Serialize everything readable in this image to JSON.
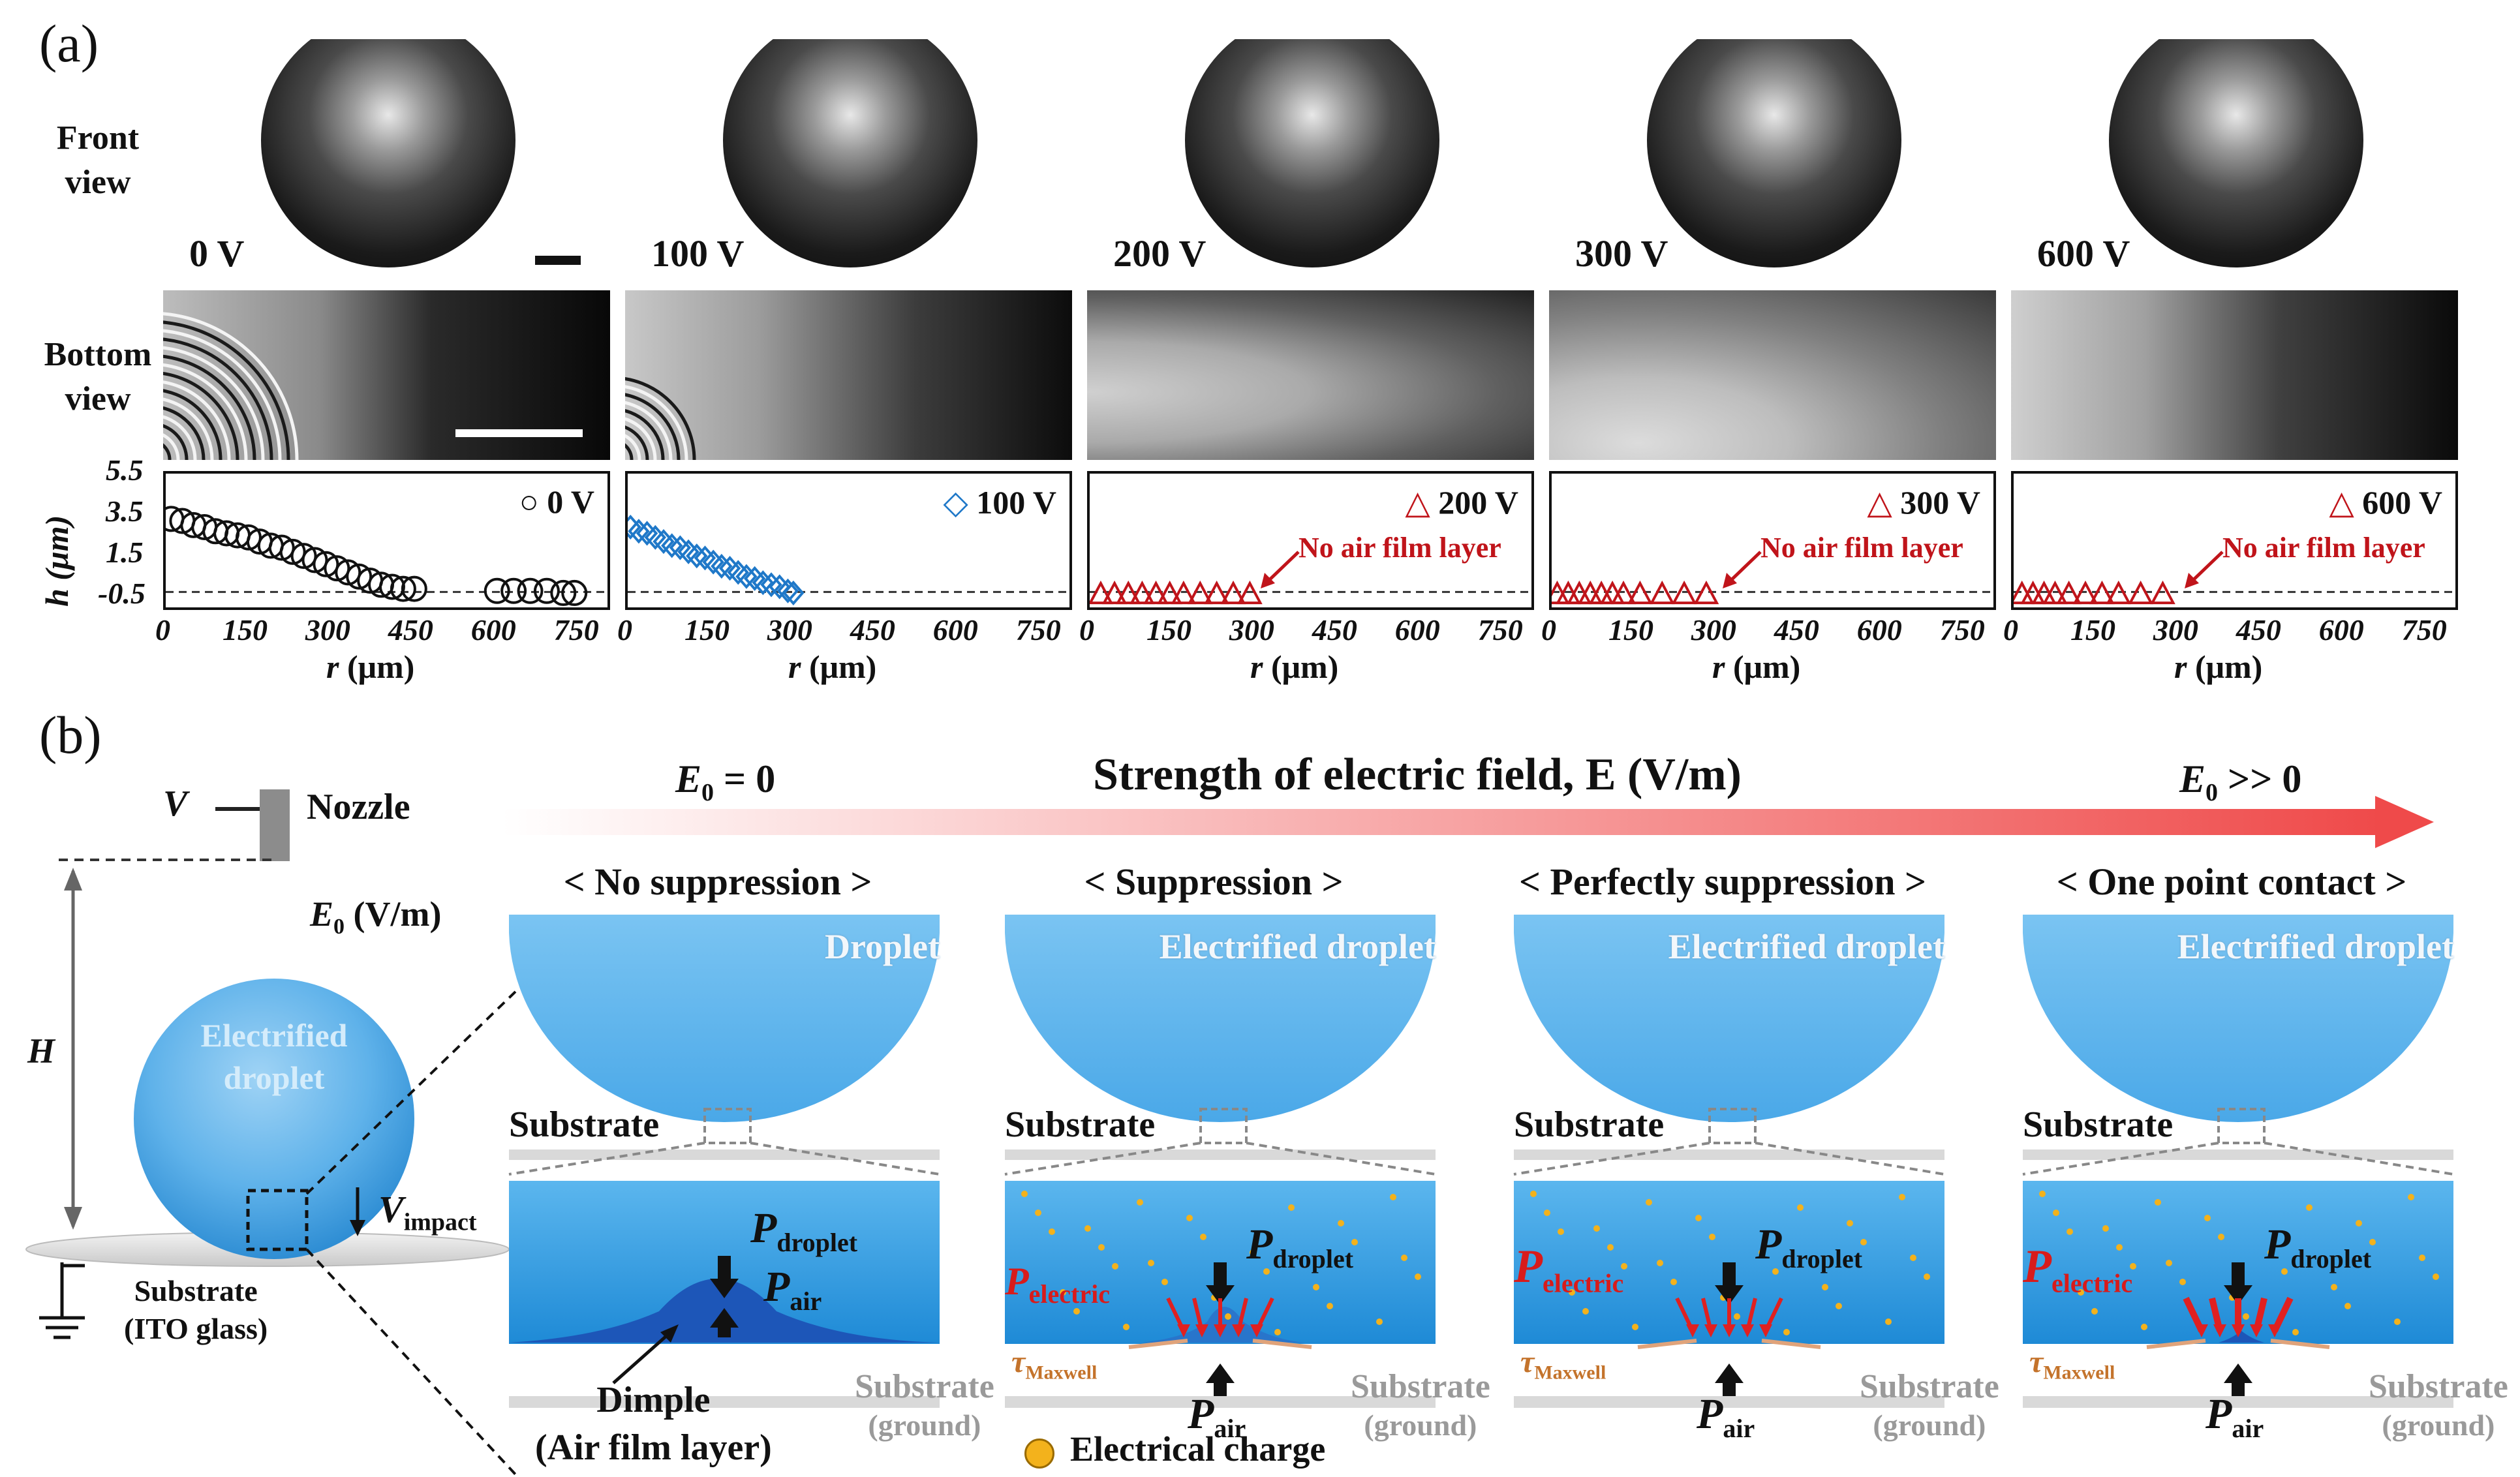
{
  "panel_a": {
    "letter": "(a)",
    "front_view_label": [
      "Front",
      "view"
    ],
    "bottom_view_label": [
      "Bottom",
      "view"
    ],
    "voltages": [
      "0 V",
      "100 V",
      "200 V",
      "300 V",
      "600 V"
    ],
    "y_axis_label": "h (μm)",
    "y_ticks": [
      "5.5",
      "3.5",
      "1.5",
      "-0.5"
    ],
    "x_ticks": [
      "0",
      "150",
      "300",
      "450",
      "600",
      "750"
    ],
    "x_axis_label": "r (μm)",
    "no_air_film_label": "No air film layer"
  },
  "chart_data": [
    {
      "type": "scatter",
      "legend": "0 V",
      "marker": "circle",
      "color": "#111111",
      "x": [
        10,
        30,
        50,
        70,
        90,
        110,
        130,
        150,
        170,
        190,
        210,
        230,
        250,
        270,
        290,
        310,
        330,
        350,
        370,
        390,
        410,
        430,
        450,
        600,
        630,
        660,
        690,
        720,
        740
      ],
      "y": [
        3.3,
        3.2,
        3.0,
        2.9,
        2.7,
        2.6,
        2.5,
        2.4,
        2.2,
        2.0,
        1.9,
        1.7,
        1.5,
        1.3,
        1.1,
        0.9,
        0.7,
        0.5,
        0.3,
        0.1,
        0.0,
        -0.1,
        -0.1,
        -0.2,
        -0.2,
        -0.2,
        -0.2,
        -0.3,
        -0.3
      ],
      "xlim": [
        0,
        800
      ],
      "ylim": [
        -1,
        5.5
      ]
    },
    {
      "type": "scatter",
      "legend": "100 V",
      "marker": "diamond",
      "color": "#1f78c8",
      "x": [
        5,
        20,
        35,
        50,
        65,
        80,
        95,
        110,
        125,
        140,
        155,
        170,
        185,
        200,
        215,
        230,
        245,
        260,
        275,
        290,
        300
      ],
      "y": [
        2.9,
        2.7,
        2.6,
        2.4,
        2.2,
        2.0,
        1.9,
        1.7,
        1.5,
        1.4,
        1.2,
        1.0,
        0.9,
        0.7,
        0.5,
        0.4,
        0.2,
        0.1,
        0.0,
        -0.2,
        -0.3
      ],
      "xlim": [
        0,
        800
      ],
      "ylim": [
        -1,
        5.5
      ]
    },
    {
      "type": "scatter",
      "legend": "200 V",
      "marker": "triangle",
      "color": "#c0141a",
      "x": [
        20,
        45,
        70,
        95,
        120,
        145,
        170,
        200,
        230,
        260,
        290
      ],
      "y": [
        -0.4,
        -0.4,
        -0.4,
        -0.4,
        -0.4,
        -0.4,
        -0.4,
        -0.4,
        -0.4,
        -0.4,
        -0.4
      ],
      "xlim": [
        0,
        800
      ],
      "ylim": [
        -1,
        5.5
      ]
    },
    {
      "type": "scatter",
      "legend": "300 V",
      "marker": "triangle",
      "color": "#c0141a",
      "x": [
        10,
        30,
        50,
        70,
        90,
        110,
        130,
        160,
        200,
        240,
        280
      ],
      "y": [
        -0.4,
        -0.4,
        -0.4,
        -0.4,
        -0.4,
        -0.4,
        -0.4,
        -0.4,
        -0.4,
        -0.4,
        -0.4
      ],
      "xlim": [
        0,
        800
      ],
      "ylim": [
        -1,
        5.5
      ]
    },
    {
      "type": "scatter",
      "legend": "600 V",
      "marker": "triangle",
      "color": "#c0141a",
      "x": [
        15,
        35,
        55,
        75,
        100,
        130,
        160,
        190,
        230,
        270
      ],
      "y": [
        -0.4,
        -0.4,
        -0.4,
        -0.4,
        -0.4,
        -0.4,
        -0.4,
        -0.4,
        -0.4,
        -0.4
      ],
      "xlim": [
        0,
        800
      ],
      "ylim": [
        -1,
        5.5
      ]
    }
  ],
  "panel_b": {
    "letter": "(b)",
    "v_label": "V",
    "nozzle": "Nozzle",
    "e0_label": "E0 (V/m)",
    "h_label": "H",
    "electrified_droplet_left": [
      "Electrified",
      "droplet"
    ],
    "v_impact": "Vimpact",
    "substrate_ito": [
      "Substrate",
      "(ITO glass)"
    ],
    "arrow_title": "Strength of electric field, E (V/m)",
    "e0_zero": "E0 = 0",
    "e0_big": "E0 >> 0",
    "columns": [
      {
        "title": "< No suppression >",
        "droplet": "Droplet"
      },
      {
        "title": "< Suppression >",
        "droplet": "Electrified droplet"
      },
      {
        "title": "< Perfectly suppression >",
        "droplet": "Electrified droplet"
      },
      {
        "title": "< One point contact >",
        "droplet": "Electrified droplet"
      }
    ],
    "substrate": "Substrate",
    "substrate_ground": [
      "Substrate",
      "(ground)"
    ],
    "p_droplet": "Pdroplet",
    "p_air": "Pair",
    "p_electric": "Pelectric",
    "tau_maxwell": "τMaxwell",
    "dimple": [
      "Dimple",
      "(Air film layer)"
    ],
    "electrical_charge": "Electrical charge"
  }
}
